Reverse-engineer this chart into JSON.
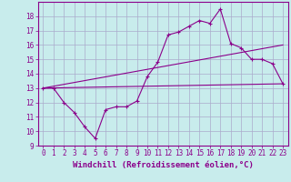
{
  "xlabel": "Windchill (Refroidissement éolien,°C)",
  "bg_color": "#c8ecec",
  "line_color": "#8b008b",
  "grid_color": "#aaaacc",
  "xlim": [
    -0.5,
    23.5
  ],
  "ylim": [
    9,
    19
  ],
  "xticks": [
    0,
    1,
    2,
    3,
    4,
    5,
    6,
    7,
    8,
    9,
    10,
    11,
    12,
    13,
    14,
    15,
    16,
    17,
    18,
    19,
    20,
    21,
    22,
    23
  ],
  "yticks": [
    9,
    10,
    11,
    12,
    13,
    14,
    15,
    16,
    17,
    18
  ],
  "line1_x": [
    0,
    1,
    2,
    3,
    4,
    5,
    6,
    7,
    8,
    9,
    10,
    11,
    12,
    13,
    14,
    15,
    16,
    17,
    18,
    19,
    20,
    21,
    22,
    23
  ],
  "line1_y": [
    13,
    13,
    12,
    11.3,
    10.3,
    9.5,
    11.5,
    11.7,
    11.7,
    12.1,
    13.8,
    14.8,
    16.7,
    16.9,
    17.3,
    17.7,
    17.5,
    18.5,
    16.1,
    15.8,
    15.0,
    15.0,
    14.7,
    13.3
  ],
  "line2_x": [
    0,
    23
  ],
  "line2_y": [
    13.0,
    16.0
  ],
  "line3_x": [
    0,
    23
  ],
  "line3_y": [
    13.0,
    13.3
  ],
  "tick_fontsize": 5.5,
  "xlabel_fontsize": 6.5
}
